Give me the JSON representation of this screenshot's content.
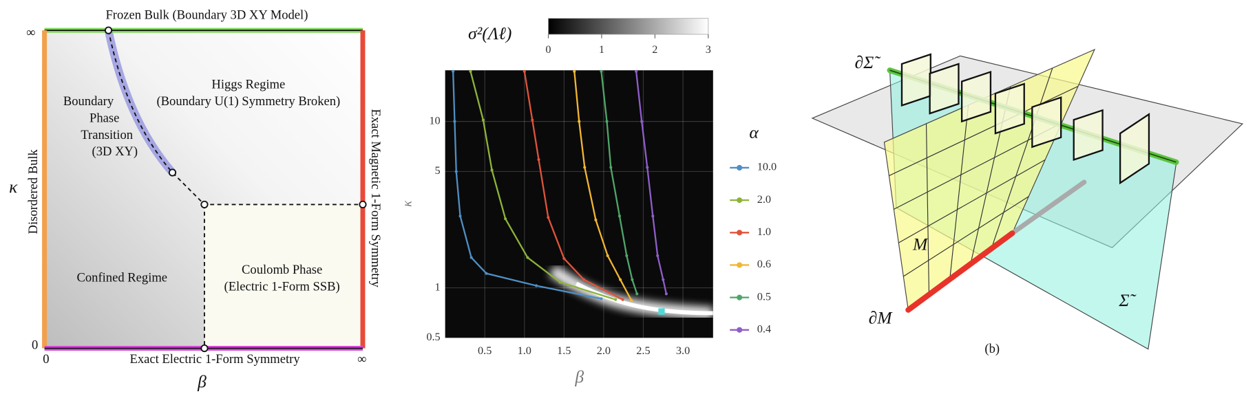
{
  "phase_diagram": {
    "title": "Frozen Bulk (Boundary 3D XY Model)",
    "x_label": "β",
    "y_label": "κ",
    "x_ticks": [
      "0",
      "∞"
    ],
    "y_ticks": [
      "∞",
      "0"
    ],
    "left_label": "Disordered Bulk",
    "right_label": "Exact Magnetic 1-Form Symmetry",
    "bottom_label": "Exact Electric 1-Form Symmetry",
    "regions": [
      {
        "lines": [
          "Higgs Regime",
          "(Boundary U(1) Symmetry Broken)"
        ]
      },
      {
        "lines": [
          "Boundary",
          "Phase",
          "Transition",
          "(3D XY)"
        ]
      },
      {
        "lines": [
          "Confined Regime"
        ]
      },
      {
        "lines": [
          "Coulomb Phase",
          "(Electric 1-Form SSB)"
        ]
      }
    ]
  },
  "chart_data": {
    "type": "line",
    "x_label": "β",
    "y_label": "κ",
    "yscale": "log",
    "xlim": [
      0,
      3.38
    ],
    "ylim": [
      0.5,
      20.3
    ],
    "xticks": [
      0.5,
      {
        "value": 1,
        "label": "1.0"
      },
      1.5,
      {
        "value": 2,
        "label": "2.0"
      },
      2.5,
      {
        "value": 3,
        "label": "3.0"
      }
    ],
    "yticks": [
      0.5,
      1,
      5,
      10
    ],
    "grid": true,
    "colorbar": {
      "title": "σ²(Λℓ)",
      "lim": [
        0,
        3
      ],
      "ticks": [
        0,
        1,
        2,
        3
      ]
    },
    "legend_title": "α",
    "highlight_point": {
      "x": 2.73,
      "y": 0.72,
      "color": "#4fd8d8"
    },
    "series": [
      {
        "name": "10.0",
        "color": "#4e8fc4",
        "x": [
          0.1,
          0.12,
          0.14,
          0.19,
          0.33,
          0.52,
          1.15,
          1.97
        ],
        "values": [
          20,
          10,
          5,
          2.7,
          1.52,
          1.22,
          1.03,
          0.86
        ]
      },
      {
        "name": "2.0",
        "color": "#8db33a",
        "x": [
          0.32,
          0.48,
          0.59,
          0.76,
          1.04,
          1.45,
          2.15
        ],
        "values": [
          20,
          10.2,
          5.1,
          2.6,
          1.52,
          1.08,
          0.85
        ]
      },
      {
        "name": "1.0",
        "color": "#e0533a",
        "x": [
          1.0,
          1.1,
          1.18,
          1.3,
          1.5,
          1.75,
          2.24
        ],
        "values": [
          20,
          10.2,
          5.9,
          2.65,
          1.5,
          1.12,
          0.85
        ]
      },
      {
        "name": "0.6",
        "color": "#f2b632",
        "x": [
          1.63,
          1.69,
          1.76,
          1.9,
          2.05,
          2.21,
          2.35
        ],
        "values": [
          20,
          10,
          5.3,
          2.56,
          1.56,
          1.12,
          0.84
        ]
      },
      {
        "name": "0.5",
        "color": "#4fa66a",
        "x": [
          1.97,
          2.04,
          2.09,
          2.2,
          2.29,
          2.36,
          2.42
        ],
        "values": [
          20,
          10,
          5.3,
          2.7,
          1.56,
          1.12,
          0.92
        ]
      },
      {
        "name": "0.4",
        "color": "#8e5ec9",
        "x": [
          2.41,
          2.48,
          2.55,
          2.62,
          2.68,
          2.75,
          2.79
        ],
        "values": [
          20,
          10,
          5.3,
          2.7,
          1.56,
          1.12,
          0.92
        ]
      }
    ]
  },
  "geometry_diagram": {
    "labels": [
      "∂Σ̃",
      "M",
      "∂M",
      "Σ̃"
    ],
    "caption": "(b)"
  }
}
